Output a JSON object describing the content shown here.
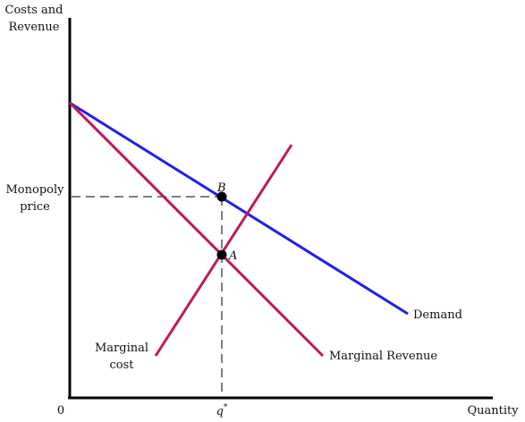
{
  "axes": {
    "y_label_line1": "Costs and",
    "y_label_line2": "Revenue",
    "x_label": "Quantity",
    "origin_label": "0"
  },
  "labels": {
    "price_line1": "Monopoly",
    "price_line2": "price",
    "q_star": "q",
    "q_star_sup": "*",
    "point_b": "B",
    "point_a": "A",
    "demand": "Demand",
    "marginal_revenue": "Marginal Revenue",
    "mc_line1": "Marginal",
    "mc_line2": "cost"
  },
  "colors": {
    "demand": "#1f1fef",
    "marginal_revenue": "#c0185a",
    "marginal_cost": "#c0185a",
    "axes": "#000000",
    "guides": "#000000"
  }
}
